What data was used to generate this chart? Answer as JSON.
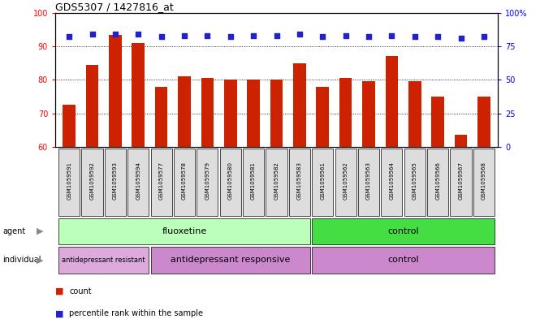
{
  "title": "GDS5307 / 1427816_at",
  "samples": [
    "GSM1059591",
    "GSM1059592",
    "GSM1059593",
    "GSM1059594",
    "GSM1059577",
    "GSM1059578",
    "GSM1059579",
    "GSM1059580",
    "GSM1059581",
    "GSM1059582",
    "GSM1059583",
    "GSM1059561",
    "GSM1059562",
    "GSM1059563",
    "GSM1059564",
    "GSM1059565",
    "GSM1059566",
    "GSM1059567",
    "GSM1059568"
  ],
  "counts": [
    72.5,
    84.5,
    93.5,
    91.0,
    78.0,
    81.0,
    80.5,
    80.0,
    80.0,
    80.0,
    85.0,
    78.0,
    80.5,
    79.5,
    87.0,
    79.5,
    75.0,
    63.5,
    75.0
  ],
  "percentiles": [
    82,
    84,
    84,
    84,
    82,
    83,
    83,
    82,
    83,
    83,
    84,
    82,
    83,
    82,
    83,
    82,
    82,
    81,
    82
  ],
  "ylim_left": [
    60,
    100
  ],
  "ylim_right": [
    0,
    100
  ],
  "yticks_left": [
    60,
    70,
    80,
    90,
    100
  ],
  "yticks_right": [
    0,
    25,
    50,
    75,
    100
  ],
  "ytick_labels_right": [
    "0",
    "25",
    "50",
    "75",
    "100%"
  ],
  "bar_color": "#cc2200",
  "dot_color": "#2222cc",
  "agent_groups": [
    {
      "label": "fluoxetine",
      "start": 0,
      "end": 11,
      "color": "#bbffbb"
    },
    {
      "label": "control",
      "start": 11,
      "end": 19,
      "color": "#44dd44"
    }
  ],
  "indiv_groups": [
    {
      "label": "antidepressant resistant",
      "start": 0,
      "end": 4,
      "color": "#ddaadd"
    },
    {
      "label": "antidepressant responsive",
      "start": 4,
      "end": 11,
      "color": "#cc88cc"
    },
    {
      "label": "control",
      "start": 11,
      "end": 19,
      "color": "#cc88cc"
    }
  ]
}
